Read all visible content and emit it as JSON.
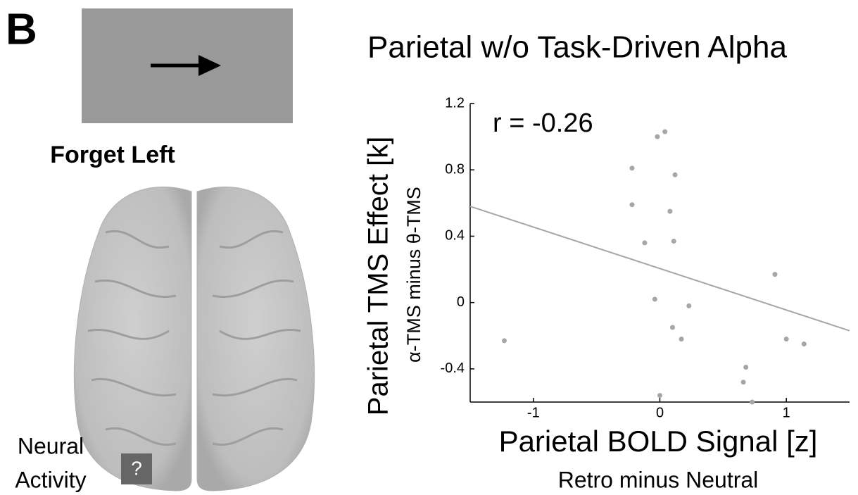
{
  "panel": {
    "label": "B",
    "caption": "Forget Left",
    "legend_lines": [
      "Neural",
      "Activity"
    ],
    "icon": "?"
  },
  "chart_data": {
    "type": "scatter",
    "title": "Parietal w/o Task-Driven Alpha",
    "annotation": "r = -0.26",
    "xlabel": "Parietal BOLD Signal [z]",
    "xlabel_sub": "Retro minus Neutral",
    "ylabel": "Parietal TMS Effect [k]",
    "ylabel_sub": "α-TMS minus θ-TMS",
    "color": "#a6a6a6",
    "x": [
      -1.23,
      -0.02,
      0.04,
      -0.22,
      0.12,
      -0.22,
      0.08,
      -0.12,
      0.11,
      0.91,
      -0.04,
      0.23,
      0.1,
      0.17,
      1.0,
      1.14,
      0.68,
      0.66,
      0.73,
      0.0
    ],
    "values": [
      -0.23,
      1.0,
      1.03,
      0.81,
      0.77,
      0.59,
      0.55,
      0.36,
      0.37,
      0.17,
      0.02,
      -0.02,
      -0.15,
      -0.22,
      -0.22,
      -0.25,
      -0.39,
      -0.48,
      -0.6,
      -0.56
    ],
    "fit_line": {
      "x": [
        -1.5,
        1.5
      ],
      "y": [
        0.58,
        -0.17
      ],
      "color": "#a6a6a6"
    },
    "xlim": [
      -1.5,
      1.5
    ],
    "xticks": [
      -1,
      0,
      1
    ],
    "ylim": [
      -0.6,
      1.2
    ],
    "yticks": [
      1.2,
      0.8,
      0.4,
      0,
      -0.4
    ]
  }
}
